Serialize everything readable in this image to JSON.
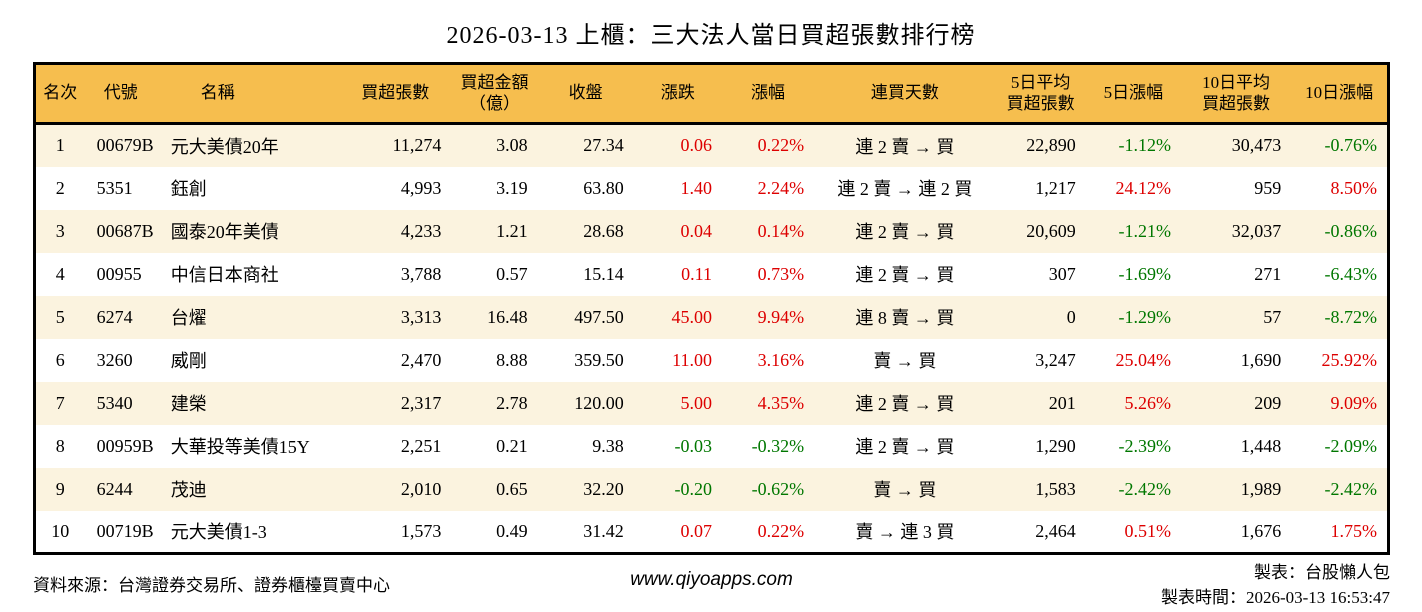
{
  "chart_data": {
    "type": "table",
    "title": "2026-03-13 上櫃：三大法人當日買超張數排行榜",
    "columns": [
      {
        "key": "rank",
        "label": "名次",
        "signed": false
      },
      {
        "key": "code",
        "label": "代號",
        "signed": false
      },
      {
        "key": "name",
        "label": "名稱",
        "signed": false
      },
      {
        "key": "net_buy_vol",
        "label": "買超張數",
        "signed": false
      },
      {
        "key": "net_buy_amt",
        "label": "買超金額\n（億）",
        "signed": false
      },
      {
        "key": "close",
        "label": "收盤",
        "signed": false
      },
      {
        "key": "change",
        "label": "漲跌",
        "signed": true
      },
      {
        "key": "change_pct",
        "label": "漲幅",
        "signed": true
      },
      {
        "key": "buy_streak",
        "label": "連買天數",
        "signed": false
      },
      {
        "key": "avg5_vol",
        "label": "5日平均\n買超張數",
        "signed": false
      },
      {
        "key": "pct5",
        "label": "5日漲幅",
        "signed": true
      },
      {
        "key": "avg10_vol",
        "label": "10日平均\n買超張數",
        "signed": false,
        "signed_note": "colored by sign like other pct columns? no"
      },
      {
        "key": "pct10",
        "label": "10日漲幅",
        "signed": true
      }
    ],
    "rows": [
      {
        "rank": "1",
        "code": "00679B",
        "name": "元大美債20年",
        "net_buy_vol": "11,274",
        "net_buy_amt": "3.08",
        "close": "27.34",
        "change": "0.06",
        "change_pct": "0.22%",
        "buy_streak": "連 2 賣 → 買",
        "avg5_vol": "22,890",
        "pct5": "-1.12%",
        "avg10_vol": "30,473",
        "pct10": "-0.76%"
      },
      {
        "rank": "2",
        "code": "5351",
        "name": "鈺創",
        "net_buy_vol": "4,993",
        "net_buy_amt": "3.19",
        "close": "63.80",
        "change": "1.40",
        "change_pct": "2.24%",
        "buy_streak": "連 2 賣 → 連 2 買",
        "avg5_vol": "1,217",
        "pct5": "24.12%",
        "avg10_vol": "959",
        "pct10": "8.50%"
      },
      {
        "rank": "3",
        "code": "00687B",
        "name": "國泰20年美債",
        "net_buy_vol": "4,233",
        "net_buy_amt": "1.21",
        "close": "28.68",
        "change": "0.04",
        "change_pct": "0.14%",
        "buy_streak": "連 2 賣 → 買",
        "avg5_vol": "20,609",
        "pct5": "-1.21%",
        "avg10_vol": "32,037",
        "pct10": "-0.86%"
      },
      {
        "rank": "4",
        "code": "00955",
        "name": "中信日本商社",
        "net_buy_vol": "3,788",
        "net_buy_amt": "0.57",
        "close": "15.14",
        "change": "0.11",
        "change_pct": "0.73%",
        "buy_streak": "連 2 賣 → 買",
        "avg5_vol": "307",
        "pct5": "-1.69%",
        "avg10_vol": "271",
        "pct10": "-6.43%"
      },
      {
        "rank": "5",
        "code": "6274",
        "name": "台燿",
        "net_buy_vol": "3,313",
        "net_buy_amt": "16.48",
        "close": "497.50",
        "change": "45.00",
        "change_pct": "9.94%",
        "buy_streak": "連 8 賣 → 買",
        "avg5_vol": "0",
        "pct5": "-1.29%",
        "avg10_vol": "57",
        "pct10": "-8.72%"
      },
      {
        "rank": "6",
        "code": "3260",
        "name": "威剛",
        "net_buy_vol": "2,470",
        "net_buy_amt": "8.88",
        "close": "359.50",
        "change": "11.00",
        "change_pct": "3.16%",
        "buy_streak": "賣 → 買",
        "avg5_vol": "3,247",
        "pct5": "25.04%",
        "avg10_vol": "1,690",
        "pct10": "25.92%"
      },
      {
        "rank": "7",
        "code": "5340",
        "name": "建榮",
        "net_buy_vol": "2,317",
        "net_buy_amt": "2.78",
        "close": "120.00",
        "change": "5.00",
        "change_pct": "4.35%",
        "buy_streak": "連 2 賣 → 買",
        "avg5_vol": "201",
        "pct5": "5.26%",
        "avg10_vol": "209",
        "pct10": "9.09%"
      },
      {
        "rank": "8",
        "code": "00959B",
        "name": "大華投等美債15Y",
        "net_buy_vol": "2,251",
        "net_buy_amt": "0.21",
        "close": "9.38",
        "change": "-0.03",
        "change_pct": "-0.32%",
        "buy_streak": "連 2 賣 → 買",
        "avg5_vol": "1,290",
        "pct5": "-2.39%",
        "avg10_vol": "1,448",
        "pct10": "-2.09%"
      },
      {
        "rank": "9",
        "code": "6244",
        "name": "茂迪",
        "net_buy_vol": "2,010",
        "net_buy_amt": "0.65",
        "close": "32.20",
        "change": "-0.20",
        "change_pct": "-0.62%",
        "buy_streak": "賣 → 買",
        "avg5_vol": "1,583",
        "pct5": "-2.42%",
        "avg10_vol": "1,989",
        "pct10": "-2.42%"
      },
      {
        "rank": "10",
        "code": "00719B",
        "name": "元大美債1-3",
        "net_buy_vol": "1,573",
        "net_buy_amt": "0.49",
        "close": "31.42",
        "change": "0.07",
        "change_pct": "0.22%",
        "buy_streak": "賣 → 連 3 買",
        "avg5_vol": "2,464",
        "pct5": "0.51%",
        "avg10_vol": "1,676",
        "pct10": "1.75%"
      }
    ]
  },
  "colors": {
    "header_bg": "#f6be4e",
    "row_alt_bg": "#fbf3df",
    "row_bg": "#ffffff",
    "positive": "#dd0000",
    "negative": "#007700",
    "border": "#000000"
  },
  "footer": {
    "source": "資料來源：台灣證券交易所、證券櫃檯買賣中心",
    "website": "www.qiyoapps.com",
    "maker": "製表：台股懶人包",
    "generated_at": "製表時間：2026-03-13 16:53:47"
  }
}
